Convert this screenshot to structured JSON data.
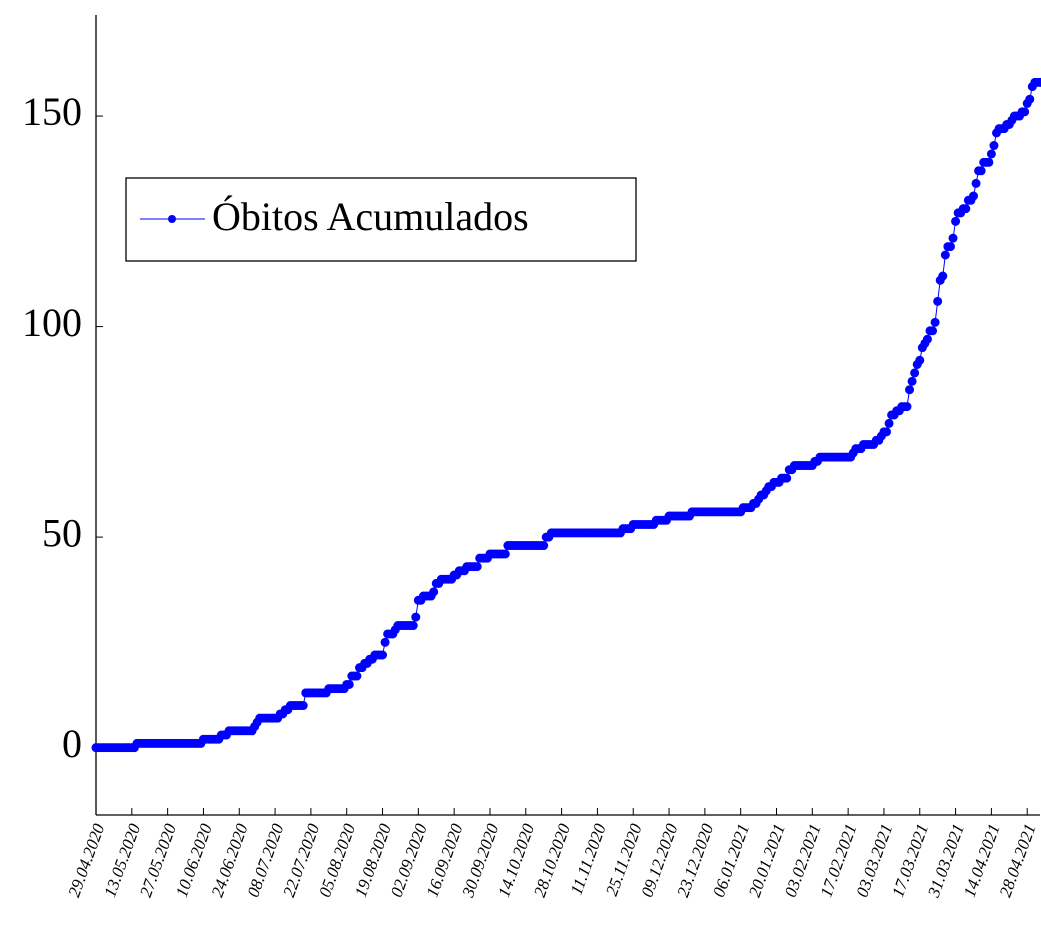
{
  "chart_data": {
    "type": "line",
    "x": [
      "29.04.2020",
      "30.04.2020",
      "01.05.2020",
      "02.05.2020",
      "03.05.2020",
      "04.05.2020",
      "05.05.2020",
      "06.05.2020",
      "07.05.2020",
      "08.05.2020",
      "09.05.2020",
      "10.05.2020",
      "11.05.2020",
      "12.05.2020",
      "13.05.2020",
      "14.05.2020",
      "15.05.2020",
      "16.05.2020",
      "17.05.2020",
      "18.05.2020",
      "19.05.2020",
      "20.05.2020",
      "21.05.2020",
      "22.05.2020",
      "23.05.2020",
      "24.05.2020",
      "25.05.2020",
      "26.05.2020",
      "27.05.2020",
      "28.05.2020",
      "29.05.2020",
      "30.05.2020",
      "31.05.2020",
      "01.06.2020",
      "02.06.2020",
      "03.06.2020",
      "04.06.2020",
      "05.06.2020",
      "06.06.2020",
      "07.06.2020",
      "08.06.2020",
      "09.06.2020",
      "10.06.2020",
      "11.06.2020",
      "12.06.2020",
      "13.06.2020",
      "14.06.2020",
      "15.06.2020",
      "16.06.2020",
      "17.06.2020",
      "18.06.2020",
      "19.06.2020",
      "20.06.2020",
      "21.06.2020",
      "22.06.2020",
      "23.06.2020",
      "24.06.2020",
      "25.06.2020",
      "26.06.2020",
      "27.06.2020",
      "28.06.2020",
      "29.06.2020",
      "30.06.2020",
      "01.07.2020",
      "02.07.2020",
      "03.07.2020",
      "04.07.2020",
      "05.07.2020",
      "06.07.2020",
      "07.07.2020",
      "08.07.2020",
      "09.07.2020",
      "10.07.2020",
      "11.07.2020",
      "12.07.2020",
      "13.07.2020",
      "14.07.2020",
      "15.07.2020",
      "16.07.2020",
      "17.07.2020",
      "18.07.2020",
      "19.07.2020",
      "20.07.2020",
      "21.07.2020",
      "22.07.2020",
      "23.07.2020",
      "24.07.2020",
      "25.07.2020",
      "26.07.2020",
      "27.07.2020",
      "28.07.2020",
      "29.07.2020",
      "30.07.2020",
      "31.07.2020",
      "01.08.2020",
      "02.08.2020",
      "03.08.2020",
      "04.08.2020",
      "05.08.2020",
      "06.08.2020",
      "07.08.2020",
      "08.08.2020",
      "09.08.2020",
      "10.08.2020",
      "11.08.2020",
      "12.08.2020",
      "13.08.2020",
      "14.08.2020",
      "15.08.2020",
      "16.08.2020",
      "17.08.2020",
      "18.08.2020",
      "19.08.2020",
      "20.08.2020",
      "21.08.2020",
      "22.08.2020",
      "23.08.2020",
      "24.08.2020",
      "25.08.2020",
      "26.08.2020",
      "27.08.2020",
      "28.08.2020",
      "29.08.2020",
      "30.08.2020",
      "31.08.2020",
      "01.09.2020",
      "02.09.2020",
      "03.09.2020",
      "04.09.2020",
      "05.09.2020",
      "06.09.2020",
      "07.09.2020",
      "08.09.2020",
      "09.09.2020",
      "10.09.2020",
      "11.09.2020",
      "12.09.2020",
      "13.09.2020",
      "14.09.2020",
      "15.09.2020",
      "16.09.2020",
      "17.09.2020",
      "18.09.2020",
      "19.09.2020",
      "20.09.2020",
      "21.09.2020",
      "22.09.2020",
      "23.09.2020",
      "24.09.2020",
      "25.09.2020",
      "26.09.2020",
      "27.09.2020",
      "28.09.2020",
      "29.09.2020",
      "30.09.2020",
      "01.10.2020",
      "02.10.2020",
      "03.10.2020",
      "04.10.2020",
      "05.10.2020",
      "06.10.2020",
      "07.10.2020",
      "08.10.2020",
      "09.10.2020",
      "10.10.2020",
      "11.10.2020",
      "12.10.2020",
      "13.10.2020",
      "14.10.2020",
      "15.10.2020",
      "16.10.2020",
      "17.10.2020",
      "18.10.2020",
      "19.10.2020",
      "20.10.2020",
      "21.10.2020",
      "22.10.2020",
      "23.10.2020",
      "24.10.2020",
      "25.10.2020",
      "26.10.2020",
      "27.10.2020",
      "28.10.2020",
      "29.10.2020",
      "30.10.2020",
      "31.10.2020",
      "01.11.2020",
      "02.11.2020",
      "03.11.2020",
      "04.11.2020",
      "05.11.2020",
      "06.11.2020",
      "07.11.2020",
      "08.11.2020",
      "09.11.2020",
      "10.11.2020",
      "11.11.2020",
      "12.11.2020",
      "13.11.2020",
      "14.11.2020",
      "15.11.2020",
      "16.11.2020",
      "17.11.2020",
      "18.11.2020",
      "19.11.2020",
      "20.11.2020",
      "21.11.2020",
      "22.11.2020",
      "23.11.2020",
      "24.11.2020",
      "25.11.2020",
      "26.11.2020",
      "27.11.2020",
      "28.11.2020",
      "29.11.2020",
      "30.11.2020",
      "01.12.2020",
      "02.12.2020",
      "03.12.2020",
      "04.12.2020",
      "05.12.2020",
      "06.12.2020",
      "07.12.2020",
      "08.12.2020",
      "09.12.2020",
      "10.12.2020",
      "11.12.2020",
      "12.12.2020",
      "13.12.2020",
      "14.12.2020",
      "15.12.2020",
      "16.12.2020",
      "17.12.2020",
      "18.12.2020",
      "19.12.2020",
      "20.12.2020",
      "21.12.2020",
      "22.12.2020",
      "23.12.2020",
      "24.12.2020",
      "25.12.2020",
      "26.12.2020",
      "27.12.2020",
      "28.12.2020",
      "29.12.2020",
      "30.12.2020",
      "31.12.2020",
      "01.01.2021",
      "02.01.2021",
      "03.01.2021",
      "04.01.2021",
      "05.01.2021",
      "06.01.2021",
      "07.01.2021",
      "08.01.2021",
      "09.01.2021",
      "10.01.2021",
      "11.01.2021",
      "12.01.2021",
      "13.01.2021",
      "14.01.2021",
      "15.01.2021",
      "16.01.2021",
      "17.01.2021",
      "18.01.2021",
      "19.01.2021",
      "20.01.2021",
      "21.01.2021",
      "22.01.2021",
      "23.01.2021",
      "24.01.2021",
      "25.01.2021",
      "26.01.2021",
      "27.01.2021",
      "28.01.2021",
      "29.01.2021",
      "30.01.2021",
      "31.01.2021",
      "01.02.2021",
      "02.02.2021",
      "03.02.2021",
      "04.02.2021",
      "05.02.2021",
      "06.02.2021",
      "07.02.2021",
      "08.02.2021",
      "09.02.2021",
      "10.02.2021",
      "11.02.2021",
      "12.02.2021",
      "13.02.2021",
      "14.02.2021",
      "15.02.2021",
      "16.02.2021",
      "17.02.2021",
      "18.02.2021",
      "19.02.2021",
      "20.02.2021",
      "21.02.2021",
      "22.02.2021",
      "23.02.2021",
      "24.02.2021",
      "25.02.2021",
      "26.02.2021",
      "27.02.2021",
      "28.02.2021",
      "01.03.2021",
      "02.03.2021",
      "03.03.2021",
      "04.03.2021",
      "05.03.2021",
      "06.03.2021",
      "07.03.2021",
      "08.03.2021",
      "09.03.2021",
      "10.03.2021",
      "11.03.2021",
      "12.03.2021",
      "13.03.2021",
      "14.03.2021",
      "15.03.2021",
      "16.03.2021",
      "17.03.2021",
      "18.03.2021",
      "19.03.2021",
      "20.03.2021",
      "21.03.2021",
      "22.03.2021",
      "23.03.2021",
      "24.03.2021",
      "25.03.2021",
      "26.03.2021",
      "27.03.2021",
      "28.03.2021",
      "29.03.2021",
      "30.03.2021",
      "31.03.2021",
      "01.04.2021",
      "02.04.2021",
      "03.04.2021",
      "04.04.2021",
      "05.04.2021",
      "06.04.2021",
      "07.04.2021",
      "08.04.2021",
      "09.04.2021",
      "10.04.2021",
      "11.04.2021",
      "12.04.2021",
      "13.04.2021",
      "14.04.2021",
      "15.04.2021",
      "16.04.2021",
      "17.04.2021",
      "18.04.2021",
      "19.04.2021",
      "20.04.2021",
      "21.04.2021",
      "22.04.2021",
      "23.04.2021",
      "24.04.2021",
      "25.04.2021",
      "26.04.2021",
      "27.04.2021",
      "28.04.2021",
      "29.04.2021",
      "30.04.2021",
      "01.05.2021",
      "02.05.2021",
      "03.05.2021"
    ],
    "series": [
      {
        "name": "Óbitos Acumulados",
        "color": "#0000ff",
        "values": [
          0,
          0,
          0,
          0,
          0,
          0,
          0,
          0,
          0,
          0,
          0,
          0,
          0,
          0,
          0,
          0,
          1,
          1,
          1,
          1,
          1,
          1,
          1,
          1,
          1,
          1,
          1,
          1,
          1,
          1,
          1,
          1,
          1,
          1,
          1,
          1,
          1,
          1,
          1,
          1,
          1,
          1,
          2,
          2,
          2,
          2,
          2,
          2,
          2,
          3,
          3,
          3,
          4,
          4,
          4,
          4,
          4,
          4,
          4,
          4,
          4,
          4,
          5,
          6,
          7,
          7,
          7,
          7,
          7,
          7,
          7,
          7,
          8,
          8,
          9,
          9,
          10,
          10,
          10,
          10,
          10,
          10,
          13,
          13,
          13,
          13,
          13,
          13,
          13,
          13,
          13,
          14,
          14,
          14,
          14,
          14,
          14,
          14,
          15,
          15,
          17,
          17,
          17,
          19,
          19,
          20,
          20,
          21,
          21,
          22,
          22,
          22,
          22,
          25,
          27,
          27,
          27,
          28,
          29,
          29,
          29,
          29,
          29,
          29,
          29,
          31,
          35,
          35,
          36,
          36,
          36,
          36,
          37,
          39,
          39,
          40,
          40,
          40,
          40,
          40,
          41,
          41,
          42,
          42,
          42,
          43,
          43,
          43,
          43,
          43,
          45,
          45,
          45,
          45,
          46,
          46,
          46,
          46,
          46,
          46,
          46,
          48,
          48,
          48,
          48,
          48,
          48,
          48,
          48,
          48,
          48,
          48,
          48,
          48,
          48,
          48,
          50,
          50,
          51,
          51,
          51,
          51,
          51,
          51,
          51,
          51,
          51,
          51,
          51,
          51,
          51,
          51,
          51,
          51,
          51,
          51,
          51,
          51,
          51,
          51,
          51,
          51,
          51,
          51,
          51,
          51,
          52,
          52,
          52,
          52,
          53,
          53,
          53,
          53,
          53,
          53,
          53,
          53,
          53,
          54,
          54,
          54,
          54,
          54,
          55,
          55,
          55,
          55,
          55,
          55,
          55,
          55,
          55,
          56,
          56,
          56,
          56,
          56,
          56,
          56,
          56,
          56,
          56,
          56,
          56,
          56,
          56,
          56,
          56,
          56,
          56,
          56,
          56,
          57,
          57,
          57,
          57,
          58,
          58,
          59,
          60,
          60,
          61,
          62,
          62,
          63,
          63,
          63,
          64,
          64,
          64,
          66,
          66,
          67,
          67,
          67,
          67,
          67,
          67,
          67,
          67,
          68,
          68,
          69,
          69,
          69,
          69,
          69,
          69,
          69,
          69,
          69,
          69,
          69,
          69,
          69,
          70,
          71,
          71,
          71,
          72,
          72,
          72,
          72,
          72,
          73,
          73,
          74,
          75,
          75,
          77,
          79,
          79,
          80,
          80,
          81,
          81,
          81,
          85,
          87,
          89,
          91,
          92,
          95,
          96,
          97,
          99,
          99,
          101,
          106,
          111,
          112,
          117,
          119,
          119,
          121,
          125,
          127,
          127,
          128,
          128,
          130,
          130,
          131,
          134,
          137,
          137,
          139,
          139,
          139,
          141,
          143,
          146,
          147,
          147,
          147,
          148,
          148,
          149,
          150,
          150,
          150,
          151,
          151,
          153,
          154,
          157,
          158,
          158,
          158
        ]
      }
    ],
    "xlim": [
      "29.04.2020",
      "03.05.2021"
    ],
    "xticks": [
      "29.04.2020",
      "13.05.2020",
      "27.05.2020",
      "10.06.2020",
      "24.06.2020",
      "08.07.2020",
      "22.07.2020",
      "05.08.2020",
      "19.08.2020",
      "02.09.2020",
      "16.09.2020",
      "30.09.2020",
      "14.10.2020",
      "28.10.2020",
      "11.11.2020",
      "25.11.2020",
      "09.12.2020",
      "23.12.2020",
      "06.01.2021",
      "20.01.2021",
      "03.02.2021",
      "17.02.2021",
      "03.03.2021",
      "17.03.2021",
      "31.03.2021",
      "14.04.2021",
      "28.04.2021"
    ],
    "ylim": [
      -16,
      174
    ],
    "yticks": [
      0,
      50,
      100,
      150
    ],
    "legend": "upper left",
    "grid": false
  }
}
